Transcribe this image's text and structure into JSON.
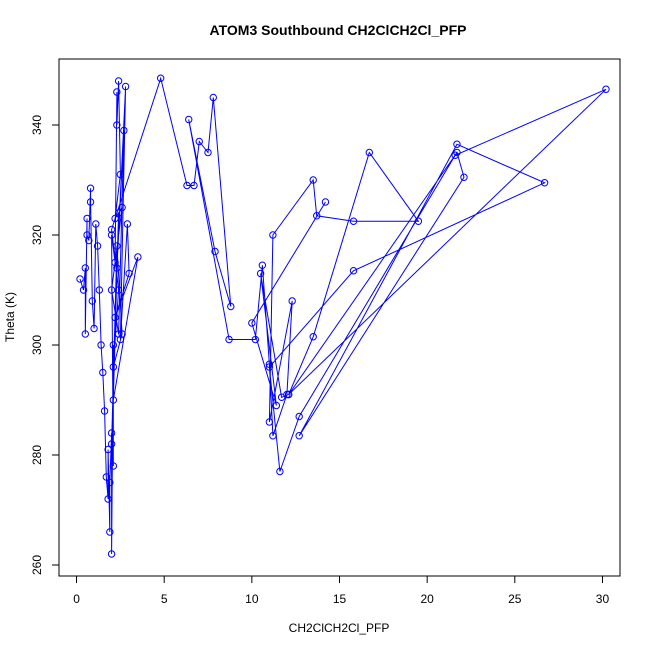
{
  "chart_data": {
    "type": "line",
    "title": "ATOM3 Southbound CH2ClCH2Cl_PFP",
    "xlabel": "CH2ClCH2Cl_PFP",
    "ylabel": "Theta (K)",
    "xlim": [
      -1,
      31
    ],
    "ylim": [
      258,
      352
    ],
    "xticks": [
      0,
      5,
      10,
      15,
      20,
      25,
      30
    ],
    "yticks": [
      260,
      280,
      300,
      320,
      340
    ],
    "grid": false,
    "marker": "open-circle",
    "series_color": "#0000ff",
    "x": [
      0.2,
      0.4,
      0.5,
      0.5,
      0.6,
      0.6,
      0.7,
      0.8,
      0.8,
      0.9,
      1.0,
      1.1,
      1.2,
      1.3,
      1.4,
      1.5,
      1.6,
      1.7,
      1.8,
      1.8,
      1.9,
      1.9,
      2.0,
      2.0,
      2.1,
      2.1,
      2.0,
      2.2,
      2.3,
      2.3,
      2.4,
      2.5,
      2.2,
      2.6,
      2.0,
      2.4,
      2.7,
      2.3,
      2.8,
      2.5,
      2.9,
      3.0,
      2.2,
      3.5,
      2.1,
      2.4,
      2.0,
      2.3,
      2.6,
      2.1,
      2.4,
      2.0,
      4.8,
      6.3,
      6.7,
      7.0,
      7.5,
      7.8,
      8.8,
      7.9,
      6.4,
      8.7,
      10.2,
      10.6,
      11.0,
      11.2,
      12.0,
      12.3,
      11.0,
      11.2,
      13.5,
      13.7,
      15.8,
      19.5,
      16.7,
      13.5,
      12.1,
      21.7,
      22.1,
      12.7,
      21.7,
      26.7,
      15.8,
      11.0,
      11.6,
      12.7,
      21.6,
      30.2,
      12.1,
      11.7,
      10.5,
      11.4,
      10.0,
      14.2
    ],
    "y": [
      312,
      310,
      314,
      302,
      323,
      320,
      319,
      328.5,
      326,
      308,
      303,
      322,
      318,
      310,
      300,
      295,
      288,
      276,
      272,
      281,
      266,
      275,
      284,
      262,
      300,
      278,
      320,
      315,
      346,
      340,
      348,
      331,
      323,
      325,
      310,
      302,
      339,
      314,
      347,
      301,
      322,
      313,
      305,
      316,
      290,
      324,
      282,
      318,
      302,
      296,
      310,
      321,
      348.5,
      329,
      329,
      337,
      335,
      345,
      307,
      317,
      341,
      301,
      301,
      314.5,
      296.5,
      283.5,
      291,
      308,
      286,
      320,
      330,
      323.5,
      322.5,
      322.5,
      335,
      301.5,
      291,
      335,
      330.5,
      283.5,
      336.5,
      329.5,
      313.5,
      296,
      277,
      287,
      334.5,
      346.5,
      291,
      290.5,
      313,
      289,
      304,
      326
    ]
  }
}
